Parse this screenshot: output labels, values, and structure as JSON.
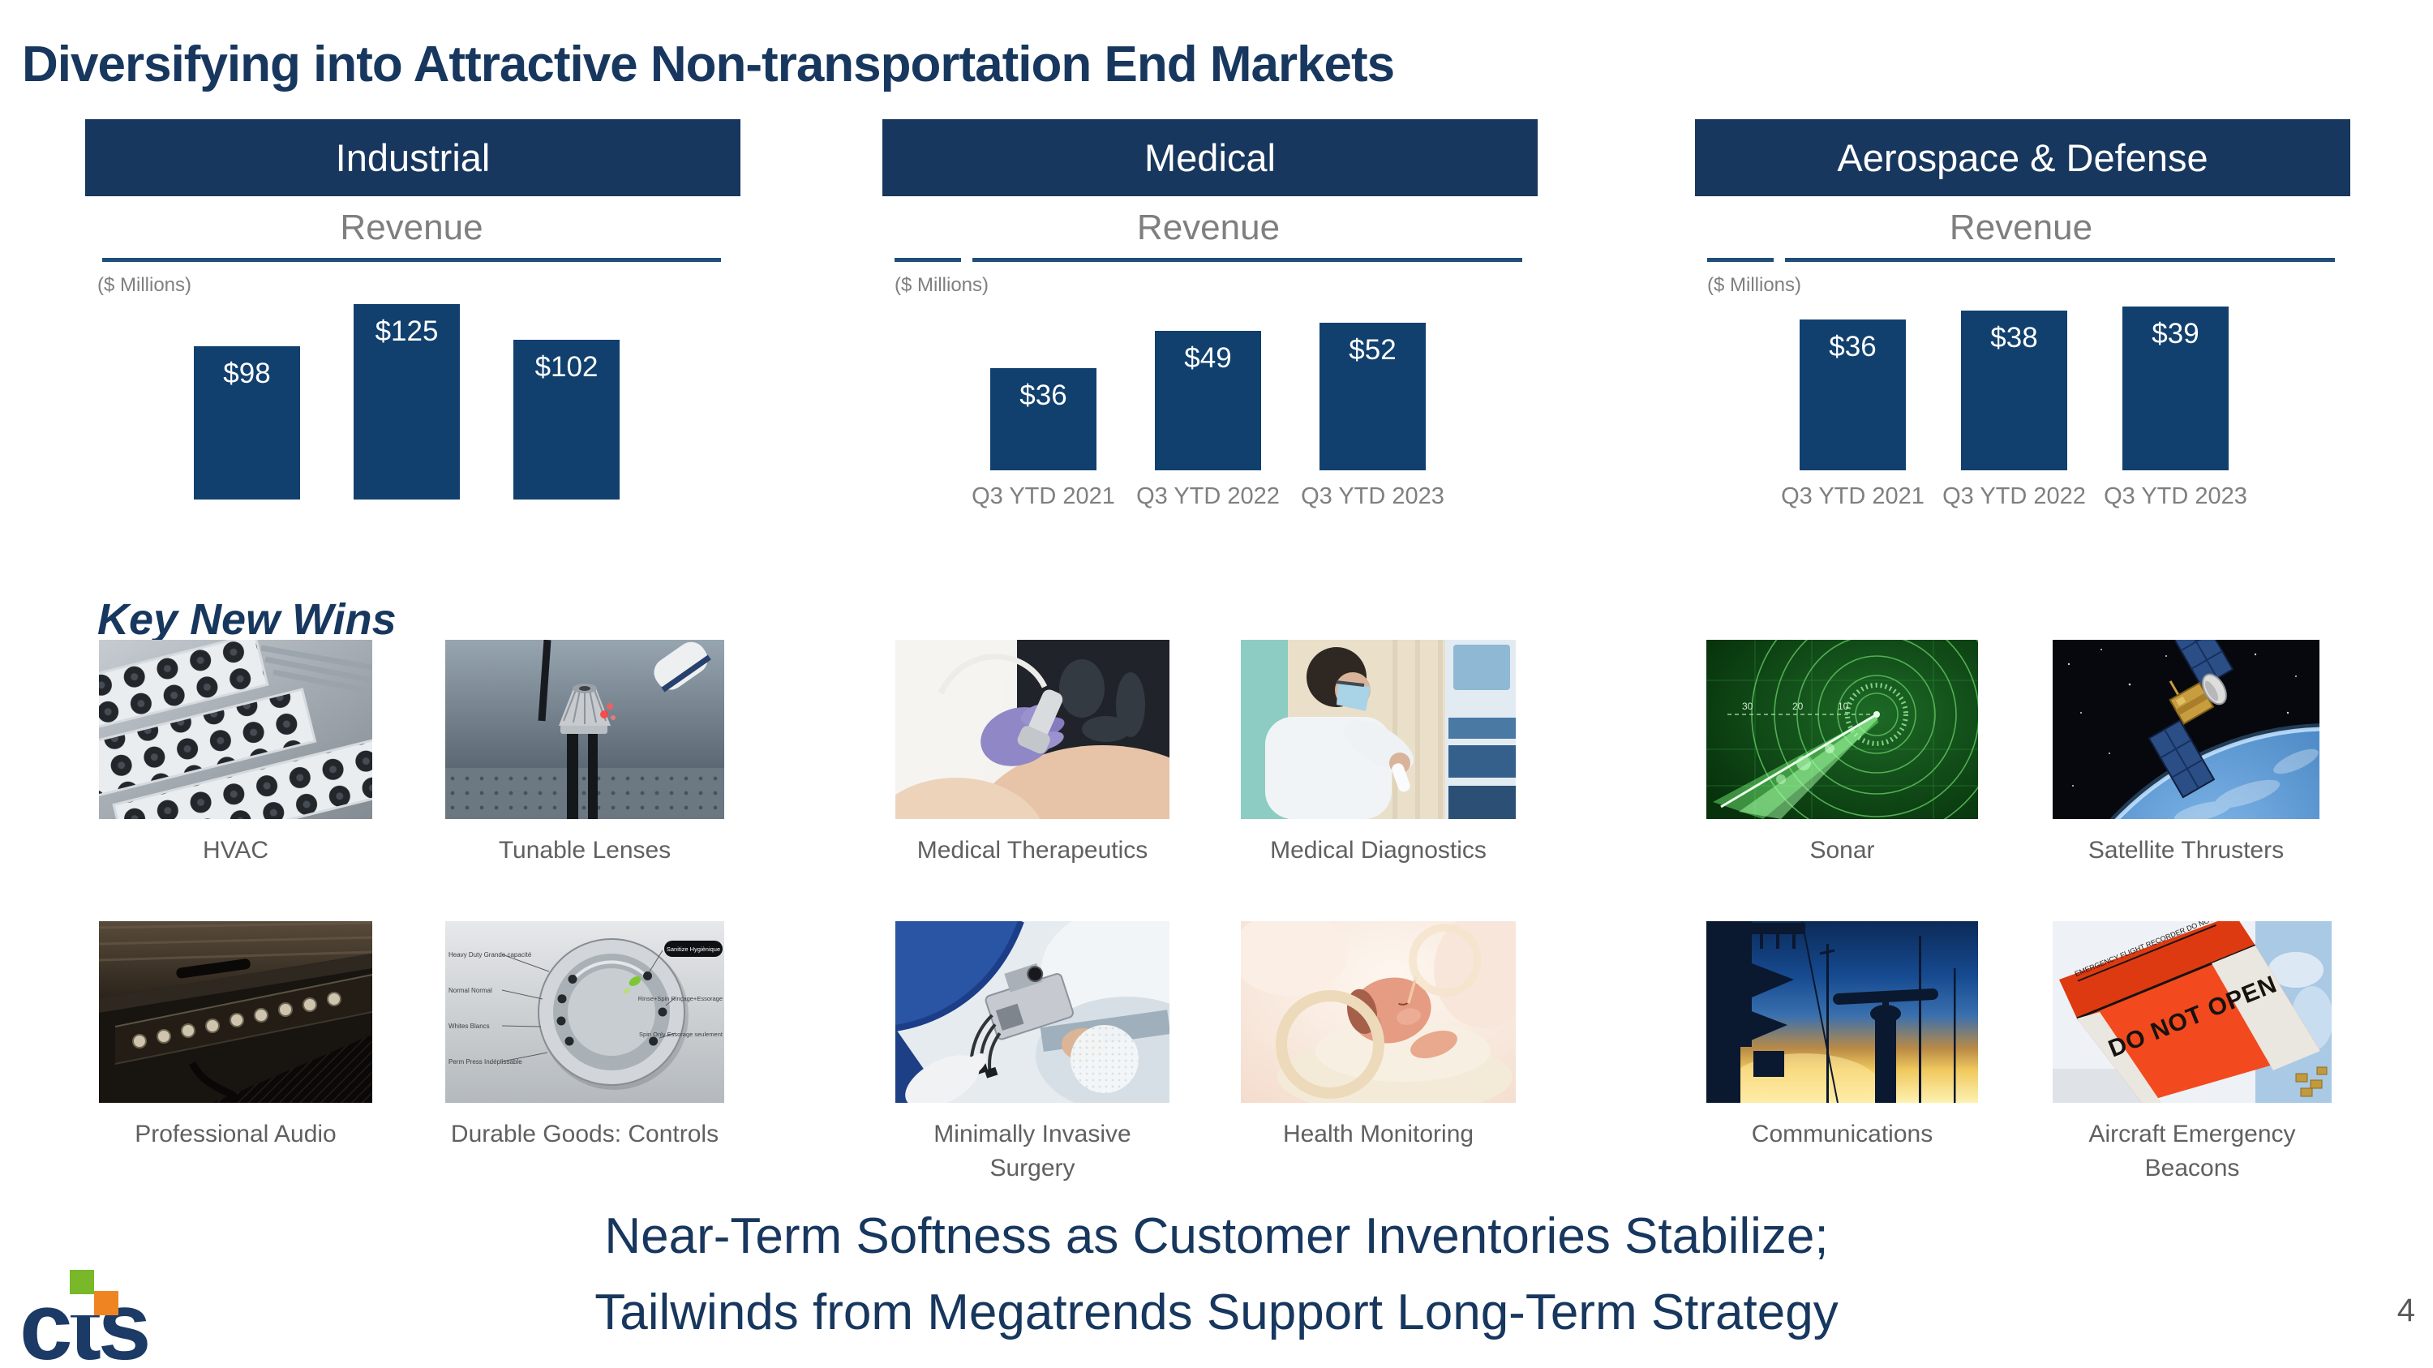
{
  "slide": {
    "title": "Diversifying into Attractive Non-transportation End Markets",
    "section_label": "Key New Wins",
    "statement": [
      "Near-Term Softness as Customer Inventories Stabilize;",
      "Tailwinds from Megatrends Support Long-Term Strategy"
    ],
    "page_number": "4",
    "logo_text": "cts"
  },
  "columns": [
    {
      "header": "Industrial",
      "chart_heading": "Revenue",
      "units": "($ Millions)"
    },
    {
      "header": "Medical",
      "chart_heading": "Revenue",
      "units": "($ Millions)"
    },
    {
      "header": "Aerospace & Defense",
      "chart_heading": "Revenue",
      "units": "($ Millions)"
    }
  ],
  "chart_data": [
    {
      "type": "bar",
      "title": "Industrial Revenue",
      "unit": "$ Millions",
      "value_prefix": "$",
      "categories": [],
      "categories_visible": false,
      "values": [
        98,
        125,
        102
      ]
    },
    {
      "type": "bar",
      "title": "Medical Revenue",
      "unit": "$ Millions",
      "value_prefix": "$",
      "categories": [
        "Q3 YTD 2021",
        "Q3 YTD 2022",
        "Q3 YTD 2023"
      ],
      "categories_visible": true,
      "values": [
        36,
        49,
        52
      ]
    },
    {
      "type": "bar",
      "title": "Aerospace & Defense Revenue",
      "unit": "$ Millions",
      "value_prefix": "$",
      "categories": [
        "Q3 YTD 2021",
        "Q3 YTD 2022",
        "Q3 YTD 2023"
      ],
      "categories_visible": true,
      "values": [
        36,
        38,
        39
      ]
    }
  ],
  "gallery": {
    "row1": [
      {
        "caption": "HVAC"
      },
      {
        "caption": "Tunable Lenses"
      },
      {
        "caption": "Medical Therapeutics"
      },
      {
        "caption": "Medical Diagnostics"
      },
      {
        "caption": "Sonar"
      },
      {
        "caption": "Satellite Thrusters"
      }
    ],
    "row2": [
      {
        "caption": "Professional Audio"
      },
      {
        "caption": "Durable Goods: Controls"
      },
      {
        "caption": "Minimally Invasive Surgery"
      },
      {
        "caption": "Health Monitoring"
      },
      {
        "caption": "Communications"
      },
      {
        "caption": "Aircraft Emergency Beacons"
      }
    ]
  },
  "photo_texts": {
    "sonar_scale": [
      "30",
      "20",
      "10"
    ],
    "washer_labels": [
      "Heavy Duty Grande capacité",
      "Normal Normal",
      "Whites Blancs",
      "Perm Press Indéplissable",
      "Sanitize Hygiènique",
      "Rinse+Spin Rinçage+Essorage",
      "Spin Only Essorage seulement"
    ],
    "beacon_top": "EMERGENCY FLIGHT RECORDER DO NOT OPEN",
    "beacon_front": "DO NOT OPEN"
  },
  "colors": {
    "navy_header": "#17375e",
    "navy_bar": "#11406e",
    "underline": "#1f4e79",
    "title_text": "#17375e",
    "gray_text": "#7f7f7f",
    "caption_text": "#606060",
    "logo_navy": "#1b3a66",
    "logo_green": "#78b829",
    "logo_orange": "#ef8522"
  }
}
